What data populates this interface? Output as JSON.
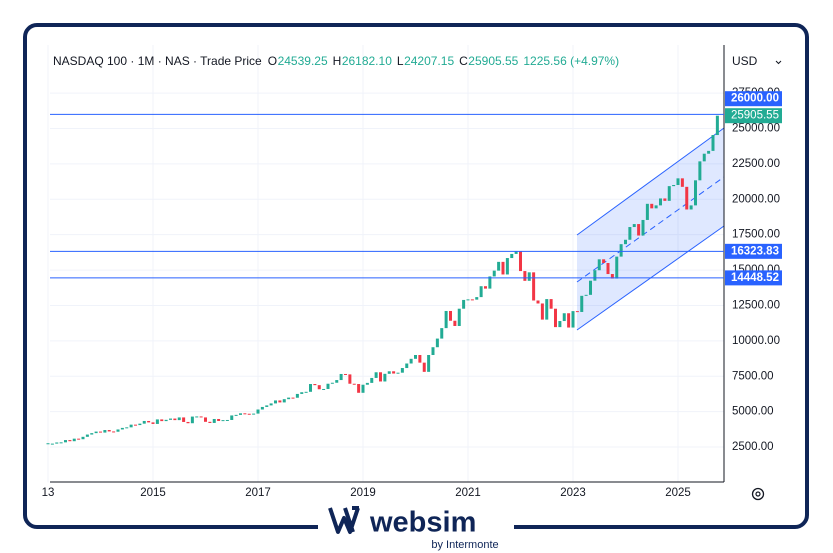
{
  "chart_data": {
    "type": "candlestick",
    "title": "NASDAQ 100 · 1M · NAS · Trade Price",
    "ohlc": [
      {
        "prefix": "O",
        "value": "24539.25"
      },
      {
        "prefix": "H",
        "value": "26182.10"
      },
      {
        "prefix": "L",
        "value": "24207.15"
      },
      {
        "prefix": "C",
        "value": "25905.55"
      }
    ],
    "change": "1225.56 (+4.97%)",
    "currency": "USD",
    "categories": [
      "13",
      null,
      null,
      null,
      null,
      null,
      null,
      null,
      null,
      null,
      null,
      null,
      null,
      null,
      null,
      null,
      null,
      null,
      null,
      null,
      null,
      null,
      null,
      null,
      "2015",
      null,
      null,
      null,
      null,
      null,
      null,
      null,
      null,
      null,
      null,
      null,
      null,
      null,
      null,
      null,
      null,
      null,
      null,
      null,
      null,
      null,
      null,
      null,
      "2017",
      null,
      null,
      null,
      null,
      null,
      null,
      null,
      null,
      null,
      null,
      null,
      null,
      null,
      null,
      null,
      null,
      null,
      null,
      null,
      null,
      null,
      null,
      null,
      "2019",
      null,
      null,
      null,
      null,
      null,
      null,
      null,
      null,
      null,
      null,
      null,
      null,
      null,
      null,
      null,
      null,
      null,
      null,
      null,
      null,
      null,
      null,
      null,
      "2021",
      null,
      null,
      null,
      null,
      null,
      null,
      null,
      null,
      null,
      null,
      null,
      null,
      null,
      null,
      null,
      null,
      null,
      null,
      null,
      null,
      null,
      null,
      null,
      "2023",
      null,
      null,
      null,
      null,
      null,
      null,
      null,
      null,
      null,
      null,
      null,
      null,
      null,
      null,
      null,
      null,
      null,
      null,
      null,
      null,
      null,
      null,
      null,
      "2025",
      null,
      null,
      null,
      null,
      null,
      null,
      null,
      null,
      null
    ],
    "values": [
      2730,
      2740,
      2820,
      2830,
      2990,
      2910,
      3090,
      3050,
      3220,
      3380,
      3480,
      3590,
      3520,
      3700,
      3600,
      3580,
      3740,
      3850,
      3890,
      4080,
      4050,
      4150,
      4340,
      4240,
      4130,
      4450,
      4330,
      4420,
      4510,
      4400,
      4590,
      4270,
      4180,
      4650,
      4660,
      4590,
      4280,
      4200,
      4480,
      4340,
      4400,
      4410,
      4730,
      4770,
      4880,
      4850,
      4810,
      4860,
      5150,
      5330,
      5440,
      5580,
      5790,
      5650,
      5880,
      5990,
      5980,
      6250,
      6370,
      6400,
      6950,
      6870,
      6580,
      6600,
      6970,
      7040,
      7230,
      7660,
      7630,
      6970,
      6950,
      6330,
      6900,
      7030,
      7380,
      7780,
      7130,
      7670,
      7850,
      7690,
      7750,
      8080,
      8400,
      8730,
      9000,
      8460,
      7810,
      9000,
      9550,
      10160,
      10900,
      12110,
      11420,
      11050,
      12270,
      12890,
      12930,
      12910,
      13090,
      13860,
      13690,
      14550,
      14960,
      15580,
      14690,
      15850,
      16140,
      16320,
      14930,
      14240,
      14840,
      12850,
      12640,
      11500,
      12950,
      12270,
      10970,
      11400,
      11950,
      10940,
      12100,
      12040,
      13180,
      13250,
      14250,
      14990,
      15760,
      15500,
      14720,
      14400,
      15950,
      16830,
      17140,
      18040,
      18250,
      17440,
      18540,
      19680,
      19360,
      19570,
      20060,
      19890,
      20930,
      21010,
      21480,
      20880,
      19280,
      19570,
      21340,
      22680,
      23220,
      23420,
      24539.25,
      25905.55
    ],
    "up_color": "#22ab94",
    "down_color": "#f23645",
    "ylim": [
      0,
      30900
    ],
    "yticks": [
      {
        "value": 2500,
        "label": "2500.00"
      },
      {
        "value": 5000,
        "label": "5000.00"
      },
      {
        "value": 7500,
        "label": "7500.00"
      },
      {
        "value": 10000,
        "label": "10000.00"
      },
      {
        "value": 12500,
        "label": "12500.00"
      },
      {
        "value": 15000,
        "label": "15000.00"
      },
      {
        "value": 17500,
        "label": "17500.00"
      },
      {
        "value": 20000,
        "label": "20000.00"
      },
      {
        "value": 22500,
        "label": "22500.00"
      },
      {
        "value": 25000,
        "label": "25000.00"
      },
      {
        "value": 27500,
        "label": "27500.00"
      }
    ],
    "grid": true,
    "price_lines": [
      {
        "value": 26000,
        "label": "26000.00"
      },
      {
        "value": 16323.83,
        "label": "16323.83"
      },
      {
        "value": 14448.52,
        "label": "14448.52"
      }
    ],
    "price_line_color": "#2962ff",
    "last_price": {
      "value": 25905.55,
      "label": "25905.55"
    }
  },
  "brand": {
    "name": "websim",
    "tagline": "by Intermonte"
  }
}
